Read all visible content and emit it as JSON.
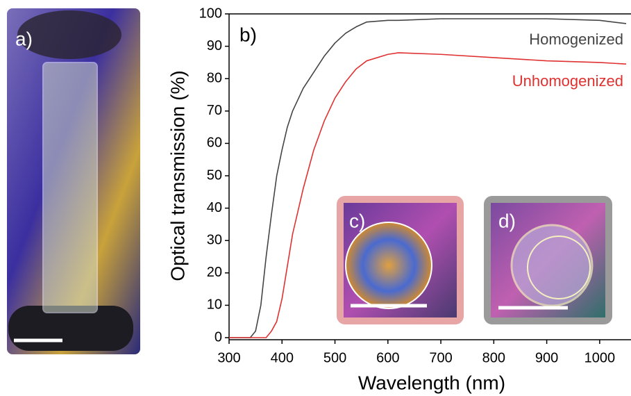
{
  "chart_data": {
    "type": "line",
    "xlabel": "Wavelength (nm)",
    "ylabel": "Optical transmission (%)",
    "x": [
      300,
      340,
      350,
      360,
      370,
      380,
      390,
      400,
      410,
      420,
      440,
      460,
      480,
      500,
      520,
      540,
      560,
      600,
      620,
      700,
      800,
      900,
      1000,
      1050
    ],
    "series": [
      {
        "name": "Homogenized",
        "color": "#444444",
        "values": [
          0,
          0,
          2,
          10,
          25,
          38,
          50,
          58,
          65,
          70,
          77,
          82,
          87,
          91,
          94,
          96,
          97.5,
          98,
          98,
          98.5,
          98.5,
          98.5,
          98,
          97
        ]
      },
      {
        "name": "Unhomogenized",
        "color": "#e03030",
        "values": [
          0,
          0,
          0,
          0,
          0,
          2,
          5,
          12,
          22,
          32,
          46,
          58,
          67,
          74,
          79,
          83,
          85.5,
          87.5,
          88,
          87.5,
          86.5,
          85.5,
          85,
          84.5
        ]
      }
    ],
    "xlim": [
      300,
      1050
    ],
    "ylim": [
      0,
      100
    ],
    "xticks": [
      300,
      400,
      500,
      600,
      700,
      800,
      900,
      1000
    ],
    "yticks": [
      0,
      10,
      20,
      30,
      40,
      50,
      60,
      70,
      80,
      90,
      100
    ],
    "annotations": [
      "a)",
      "b)",
      "c)",
      "d)"
    ]
  }
}
